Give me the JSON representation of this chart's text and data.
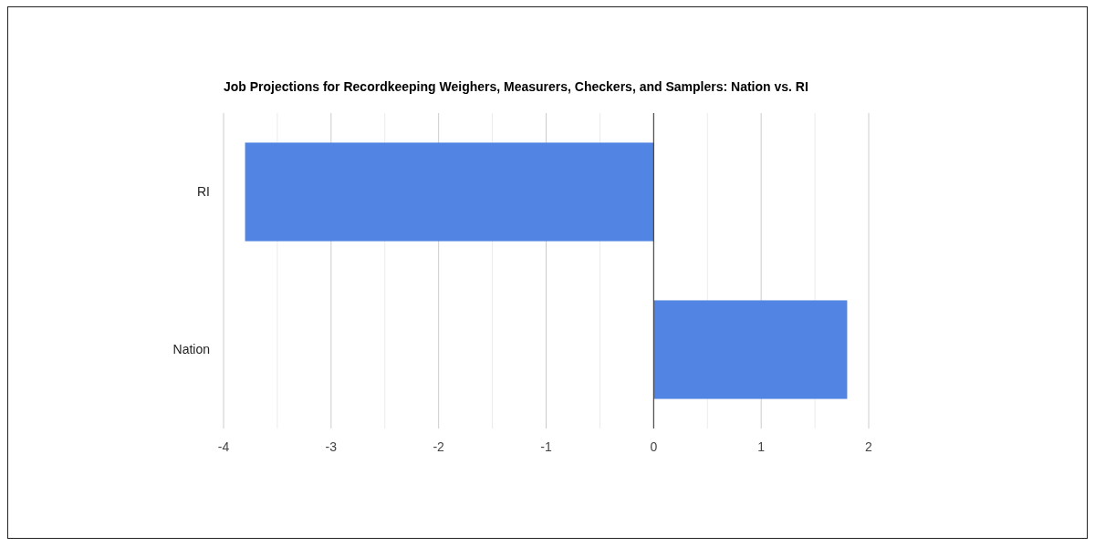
{
  "chart_data": {
    "type": "bar",
    "orientation": "horizontal",
    "title": "Job Projections for Recordkeeping Weighers, Measurers, Checkers, and Samplers: Nation vs. RI",
    "categories": [
      "RI",
      "Nation"
    ],
    "values": [
      -3.8,
      1.8
    ],
    "color": "#5285e3",
    "xlim": [
      -4,
      2
    ],
    "xticks": [
      -4,
      {
        "value": -3.5,
        "label": null
      },
      -3,
      {
        "value": -2.5,
        "label": null
      },
      -2,
      {
        "value": -1.5,
        "label": null
      },
      -1,
      {
        "value": -0.5,
        "label": null
      },
      0,
      {
        "value": 0.5,
        "label": null
      },
      1,
      {
        "value": 1.5,
        "label": null
      },
      2
    ],
    "grid": "x"
  }
}
